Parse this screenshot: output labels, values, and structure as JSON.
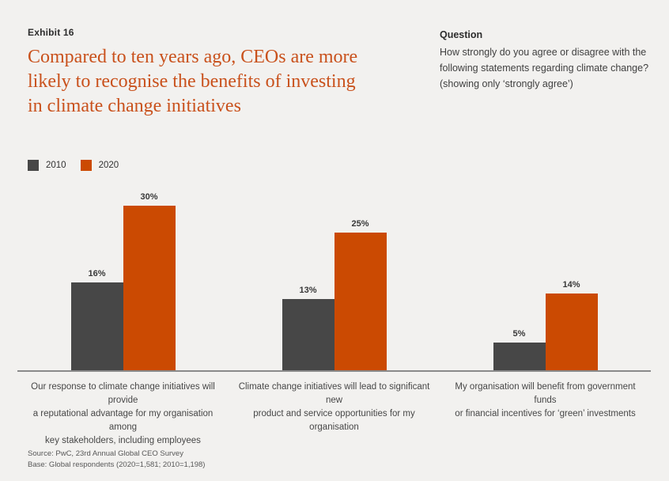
{
  "header": {
    "exhibit_label": "Exhibit 16",
    "title_lines": [
      "Compared to ten years ago, CEOs are more",
      "likely to recognise the benefits of investing",
      "in climate change initiatives"
    ]
  },
  "question": {
    "heading": "Question",
    "lines": [
      "How strongly do you agree or disagree with the",
      "following statements regarding climate change?",
      "(showing only ‘strongly agree’)"
    ]
  },
  "colors": {
    "background": "#f2f1ef",
    "title_orange": "#c9511c",
    "series_2010": "#474747",
    "series_2020": "#cb4a02",
    "axis_line": "#8a8a8a"
  },
  "chart_data": {
    "type": "bar",
    "title": "Compared to ten years ago, CEOs are more likely to recognise the benefits of investing in climate change initiatives",
    "subtitle": "How strongly do you agree or disagree with the following statements regarding climate change? (showing only 'strongly agree')",
    "categories": [
      "Our response to climate change initiatives will provide a reputational advantage for my organisation among key stakeholders, including employees",
      "Climate change initiatives will lead to significant new product and service opportunities for my organisation",
      "My organisation will benefit from government funds or financial incentives for 'green' investments"
    ],
    "category_lines": [
      [
        "Our response to climate change initiatives will provide",
        "a reputational advantage for my organisation among",
        "key stakeholders, including employees"
      ],
      [
        "Climate change initiatives will lead to significant new",
        "product and service opportunities for my organisation"
      ],
      [
        "My organisation will benefit from government funds",
        "or financial incentives for ‘green’ investments"
      ]
    ],
    "series": [
      {
        "name": "2010",
        "color": "#474747",
        "values": [
          16,
          13,
          5
        ]
      },
      {
        "name": "2020",
        "color": "#cb4a02",
        "values": [
          30,
          25,
          14
        ]
      }
    ],
    "value_suffix": "%",
    "ylim": [
      0,
      30
    ],
    "grid": false,
    "legend_position": "top-left",
    "value_labels_shown": true
  },
  "source": {
    "lines": [
      "Source: PwC, 23rd Annual Global CEO Survey",
      "Base: Global respondents (2020=1,581; 2010=1,198)"
    ]
  }
}
